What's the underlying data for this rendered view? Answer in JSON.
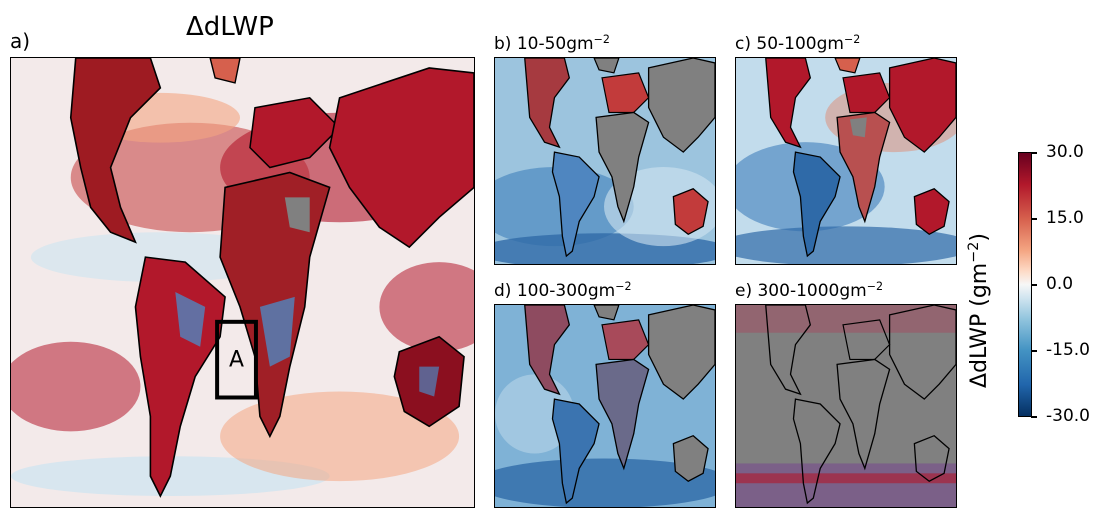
{
  "figure_title": "ΔdLWP",
  "panels": [
    {
      "id": "a",
      "label": "a)",
      "title": ""
    },
    {
      "id": "b",
      "label": "b) 10-50gm",
      "unit_sup": "−2"
    },
    {
      "id": "c",
      "label": "c) 50-100gm",
      "unit_sup": "−2"
    },
    {
      "id": "d",
      "label": "d) 100-300gm",
      "unit_sup": "−2"
    },
    {
      "id": "e",
      "label": "e) 300-1000gm",
      "unit_sup": "−2"
    }
  ],
  "region_box_label": "A",
  "colorbar": {
    "label": "ΔdLWP (gm",
    "label_sup": "−2",
    "label_close": ")",
    "ticks": [
      "30.0",
      "15.0",
      "0.0",
      "-15.0",
      "-30.0"
    ],
    "range": [
      -30,
      30
    ],
    "colormap": "RdBu_r"
  },
  "colors": {
    "land_masked": "#808080",
    "positive": "#b2182b",
    "negative": "#2166ac",
    "neutral": "#f7f7f7"
  }
}
